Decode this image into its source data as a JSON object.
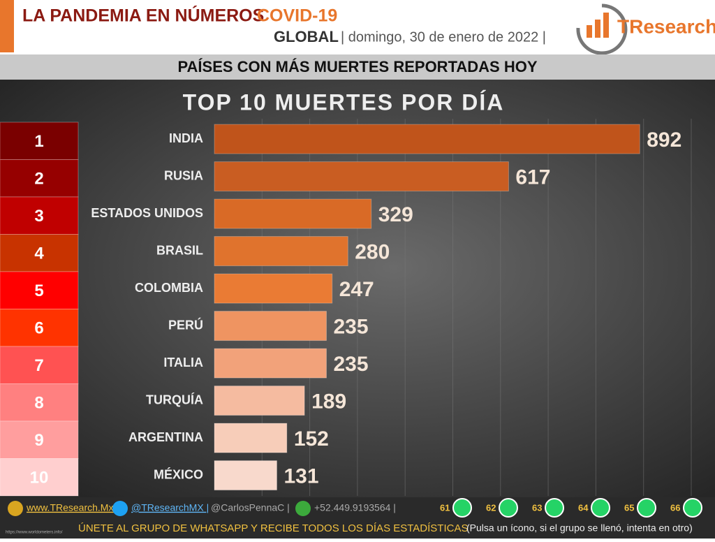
{
  "header": {
    "title": "LA PANDEMIA EN NÚMEROS",
    "title_highlight": "COVID-19",
    "scope": "GLOBAL",
    "date": "| domingo, 30 de enero de 2022 |",
    "logo": "TResearch",
    "band": "PAÍSES CON MÁS MUERTES REPORTADAS HOY"
  },
  "chart_data": {
    "type": "bar",
    "orientation": "horizontal",
    "title": "TOP 10 MUERTES POR DÍA",
    "ranks": [
      "1",
      "2",
      "3",
      "4",
      "5",
      "6",
      "7",
      "8",
      "9",
      "10"
    ],
    "rank_colors": [
      "#7a0000",
      "#960000",
      "#c00000",
      "#c83300",
      "#ff0000",
      "#ff3300",
      "#ff5252",
      "#ff8080",
      "#ff9e9e",
      "#ffcfcf"
    ],
    "categories": [
      "INDIA",
      "RUSIA",
      "ESTADOS UNIDOS",
      "BRASIL",
      "COLOMBIA",
      "PERÚ",
      "ITALIA",
      "TURQUÍA",
      "ARGENTINA",
      "MÉXICO"
    ],
    "values": [
      892,
      617,
      329,
      280,
      247,
      235,
      235,
      189,
      152,
      131
    ],
    "colors": [
      "#c0541b",
      "#c95d22",
      "#d96a26",
      "#e0732d",
      "#ea7b34",
      "#ef9461",
      "#f2a27a",
      "#f5bba0",
      "#f7cdb9",
      "#f8d9cc"
    ],
    "xlim": [
      0,
      1000
    ],
    "xticks": [
      100,
      200,
      300,
      400,
      500,
      600,
      700,
      800,
      900,
      1000
    ],
    "grid": true
  },
  "footer": {
    "web": "www.TResearch.Mx |",
    "twitter": "@TResearchMX |",
    "twitter2": "@CarlosPennaC |",
    "phone": "+52.449.9193564 |",
    "groups": [
      "61",
      "62",
      "63",
      "64",
      "65",
      "66"
    ],
    "join": "ÚNETE AL GRUPO DE WHATSAPP Y RECIBE TODOS LOS DÍAS ESTADÍSTICAS",
    "join_note": "(Pulsa un ícono, si el grupo se llenó, intenta en otro)",
    "source": "https://www.worldometers.info/"
  }
}
